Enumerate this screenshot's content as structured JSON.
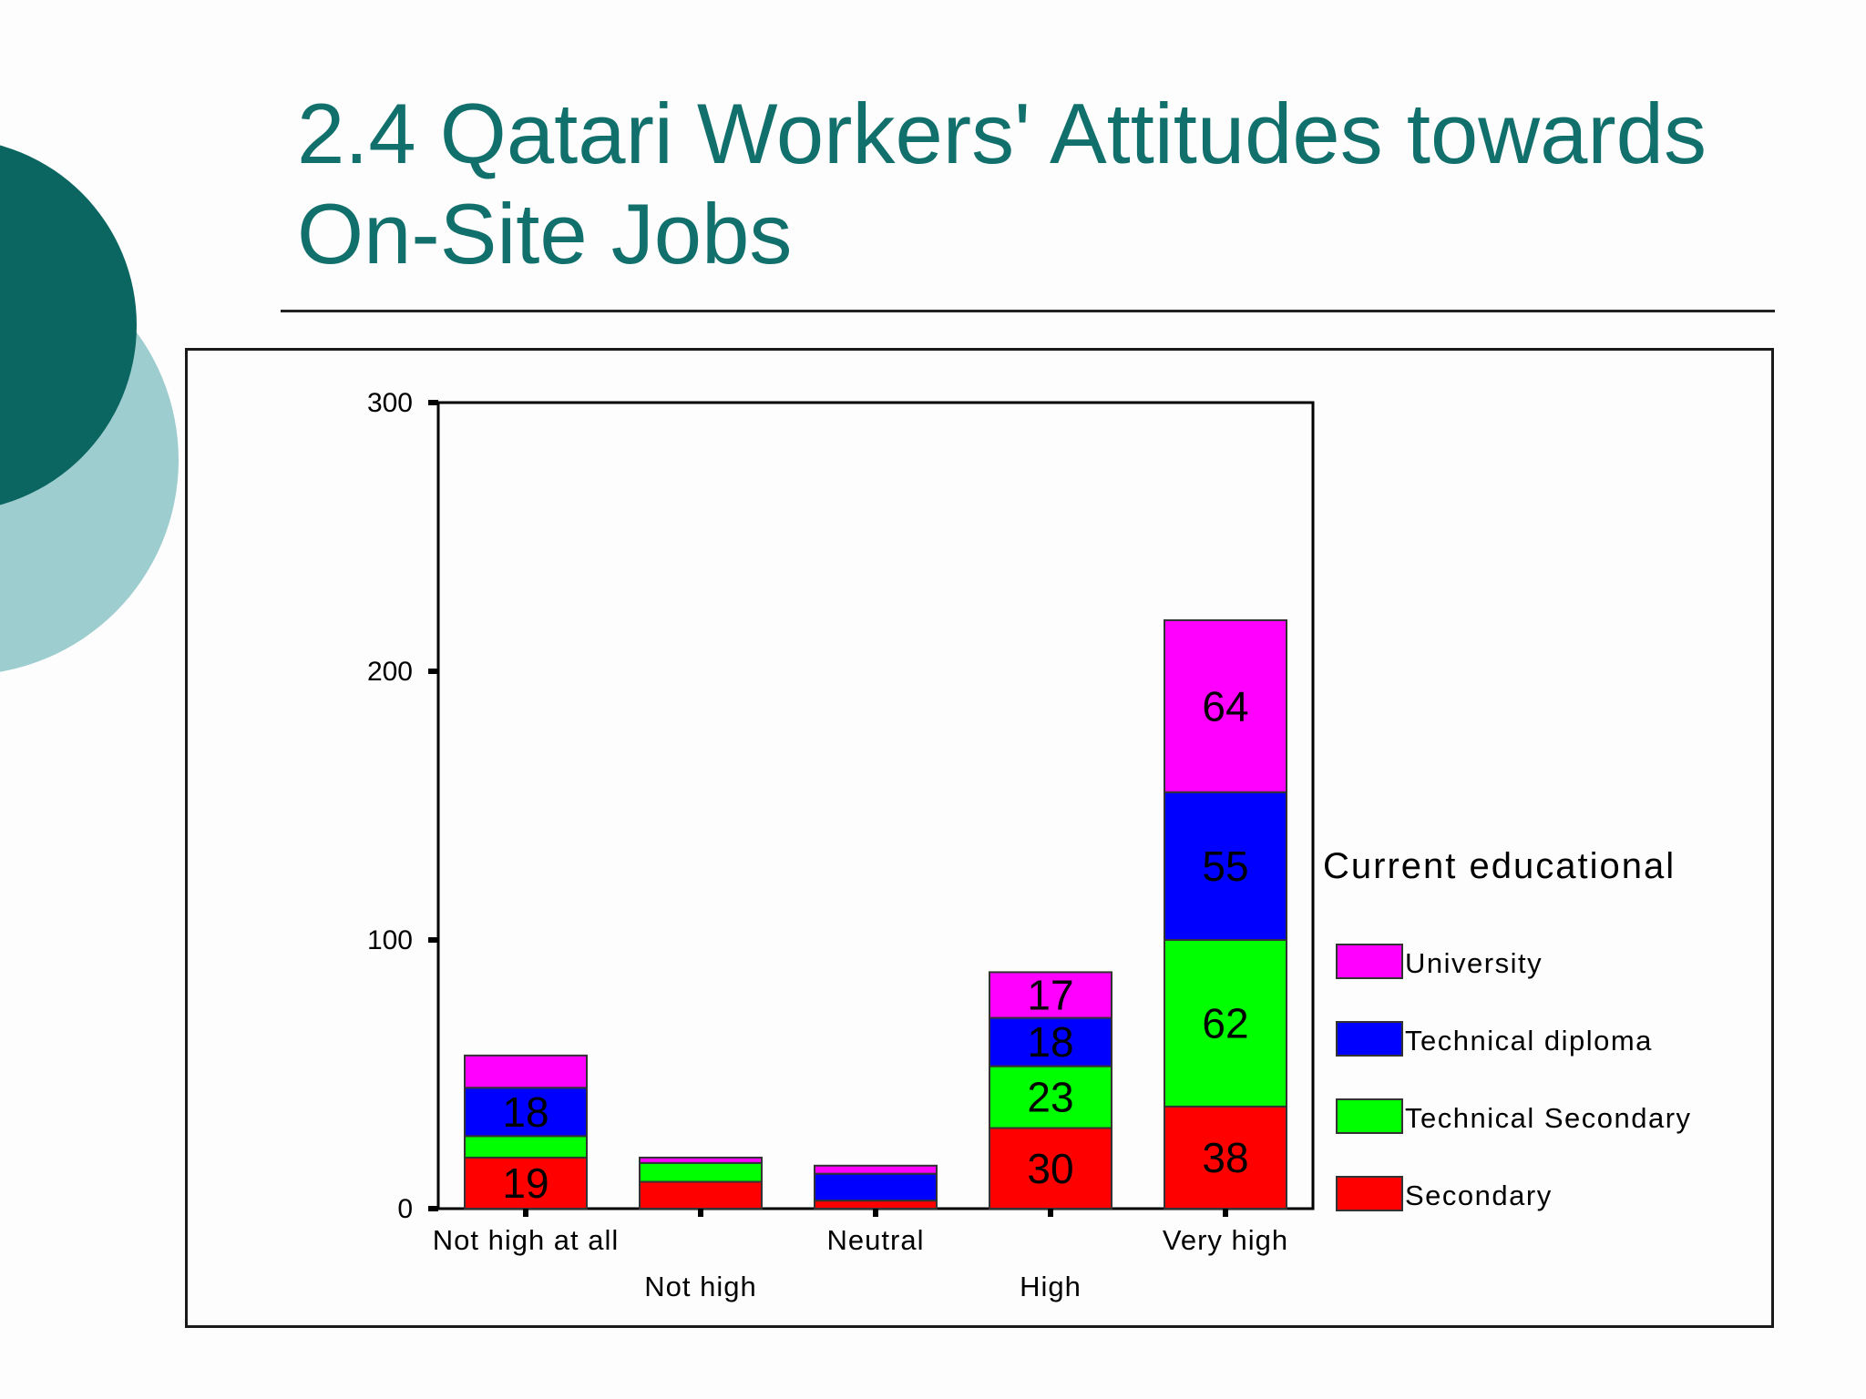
{
  "slide": {
    "title_line1": "2.4  Qatari Workers' Attitudes towards",
    "title_line2": "On-Site Jobs"
  },
  "colors": {
    "title": "#11706c",
    "circle_dark": "#0b6560",
    "circle_light": "#9ecdd0",
    "Secondary": "#ff0000",
    "Technical Secondary": "#00ff00",
    "Technical diploma": "#0000ff",
    "University": "#ff00ff"
  },
  "chart_data": {
    "type": "bar",
    "stacked": true,
    "categories": [
      "Not high at all",
      "Not high",
      "Neutral",
      "High",
      "Very high"
    ],
    "series": [
      {
        "name": "Secondary",
        "values": [
          19,
          10,
          3,
          30,
          38
        ]
      },
      {
        "name": "Technical Secondary",
        "values": [
          8,
          7,
          0,
          23,
          62
        ]
      },
      {
        "name": "Technical diploma",
        "values": [
          18,
          0,
          10,
          18,
          55
        ]
      },
      {
        "name": "University",
        "values": [
          12,
          2,
          3,
          17,
          64
        ]
      }
    ],
    "data_labels": [
      {
        "series": "Secondary",
        "category": "Not high at all",
        "text": "19"
      },
      {
        "series": "Technical diploma",
        "category": "Not high at all",
        "text": "18"
      },
      {
        "series": "Secondary",
        "category": "High",
        "text": "30"
      },
      {
        "series": "Technical Secondary",
        "category": "High",
        "text": "23"
      },
      {
        "series": "Technical diploma",
        "category": "High",
        "text": "18"
      },
      {
        "series": "University",
        "category": "High",
        "text": "17"
      },
      {
        "series": "Secondary",
        "category": "Very high",
        "text": "38"
      },
      {
        "series": "Technical Secondary",
        "category": "Very high",
        "text": "62"
      },
      {
        "series": "Technical diploma",
        "category": "Very high",
        "text": "55"
      },
      {
        "series": "University",
        "category": "Very high",
        "text": "64"
      }
    ],
    "y_ticks": [
      0,
      100,
      200,
      300
    ],
    "ylim": [
      0,
      300
    ],
    "legend_title": "Current educational",
    "legend_order": [
      "University",
      "Technical diploma",
      "Technical Secondary",
      "Secondary"
    ],
    "legend_position": "right",
    "grid": false
  }
}
